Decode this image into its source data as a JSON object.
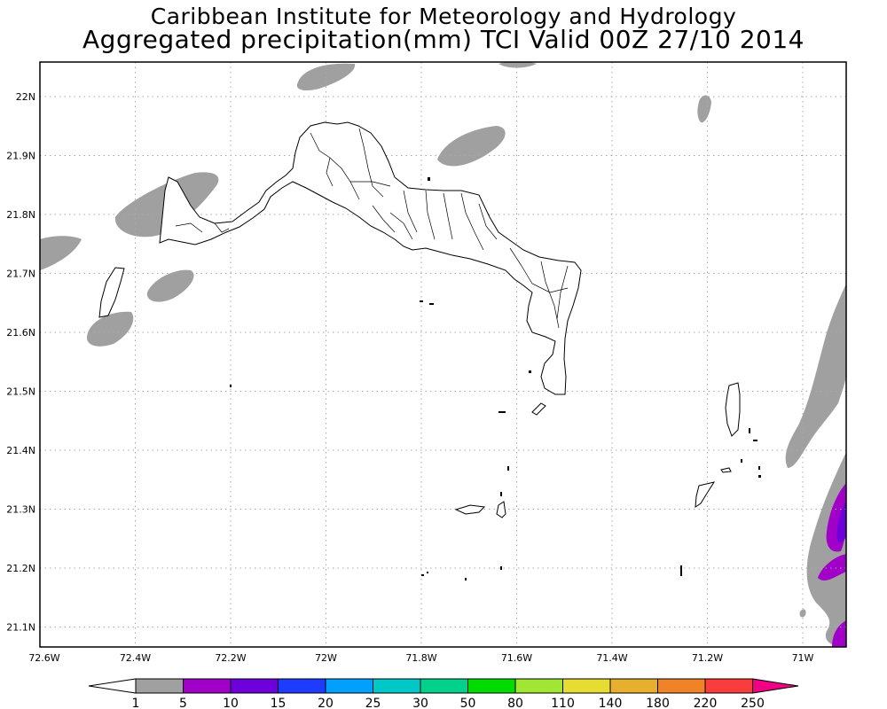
{
  "title": {
    "line1": "Caribbean Institute for Meteorology and Hydrology",
    "line2": "Aggregated precipitation(mm) TCI Valid 00Z 27/10 2014"
  },
  "axes": {
    "lat_labels": [
      "22N",
      "21.9N",
      "21.8N",
      "21.7N",
      "21.6N",
      "21.5N",
      "21.4N",
      "21.3N",
      "21.2N",
      "21.1N"
    ],
    "lon_labels": [
      "72.6W",
      "72.4W",
      "72.2W",
      "72W",
      "71.8W",
      "71.6W",
      "71.4W",
      "71.2W",
      "71W"
    ]
  },
  "colorbar": {
    "labels": [
      "1",
      "5",
      "10",
      "15",
      "20",
      "25",
      "30",
      "50",
      "80",
      "110",
      "140",
      "180",
      "220",
      "250"
    ],
    "colors": [
      "#a0a0a0",
      "#a000c8",
      "#6e00dc",
      "#1e3cff",
      "#00a0ff",
      "#00c8c8",
      "#00d28c",
      "#00dc00",
      "#a0e632",
      "#e6dc32",
      "#e6af2d",
      "#f08228",
      "#fa3c3c",
      "#f00082"
    ]
  },
  "map_content": {
    "region": "Turks and Caicos Islands",
    "precip_colors": {
      "light": "#a0a0a0",
      "medium": "#a000c8",
      "heavy": "#6e00dc"
    }
  }
}
